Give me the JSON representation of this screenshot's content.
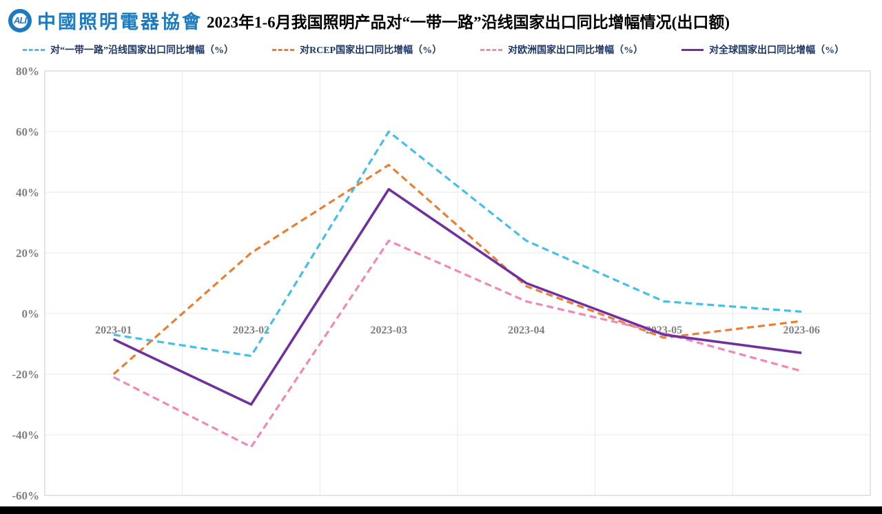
{
  "header": {
    "logo": {
      "circle_text": "ALI",
      "org_name": "中國照明電器協會"
    },
    "title": "2023年1-6月我国照明产品对“一带一路”沿线国家出口同比增幅情况(出口额)"
  },
  "colors": {
    "logo_blue": "#1B7AC0",
    "legend_text": "#1F3864",
    "tick_text": "#808080",
    "gridline": "#E8E8E8",
    "bottom_bar": "#000000"
  },
  "chart_data": {
    "type": "line",
    "title": "2023年1-6月我国照明产品对“一带一路”沿线国家出口同比增幅情况(出口额)",
    "categories": [
      "2023-01",
      "2023-02",
      "2023-03",
      "2023-04",
      "2023-05",
      "2023-06"
    ],
    "series": [
      {
        "name": "对“一带一路”沿线国家出口同比增幅（%）",
        "color": "#41C0EA",
        "dashed": true,
        "values": [
          -7,
          -14,
          60,
          24,
          4,
          0.6
        ]
      },
      {
        "name": "对RCEP国家出口同比增幅（%）",
        "color": "#ED7D31",
        "dashed": true,
        "values": [
          -20,
          20,
          49,
          9,
          -8,
          -2.5
        ]
      },
      {
        "name": "对欧洲国家出口同比增幅（%）",
        "color": "#F287B7",
        "dashed": true,
        "values": [
          -21,
          -44,
          24,
          4,
          -6.5,
          -19
        ]
      },
      {
        "name": "对全球国家出口同比增幅（%）",
        "color": "#7030A0",
        "dashed": false,
        "values": [
          -8.5,
          -30,
          41,
          10,
          -7,
          -13
        ]
      }
    ],
    "xlabel": "",
    "ylabel": "",
    "ylim": [
      -60,
      80
    ],
    "ytick_step": 20,
    "ytick_format": "percent",
    "grid": true,
    "legend_position": "top",
    "xlabels_at_zero_axis": true
  }
}
